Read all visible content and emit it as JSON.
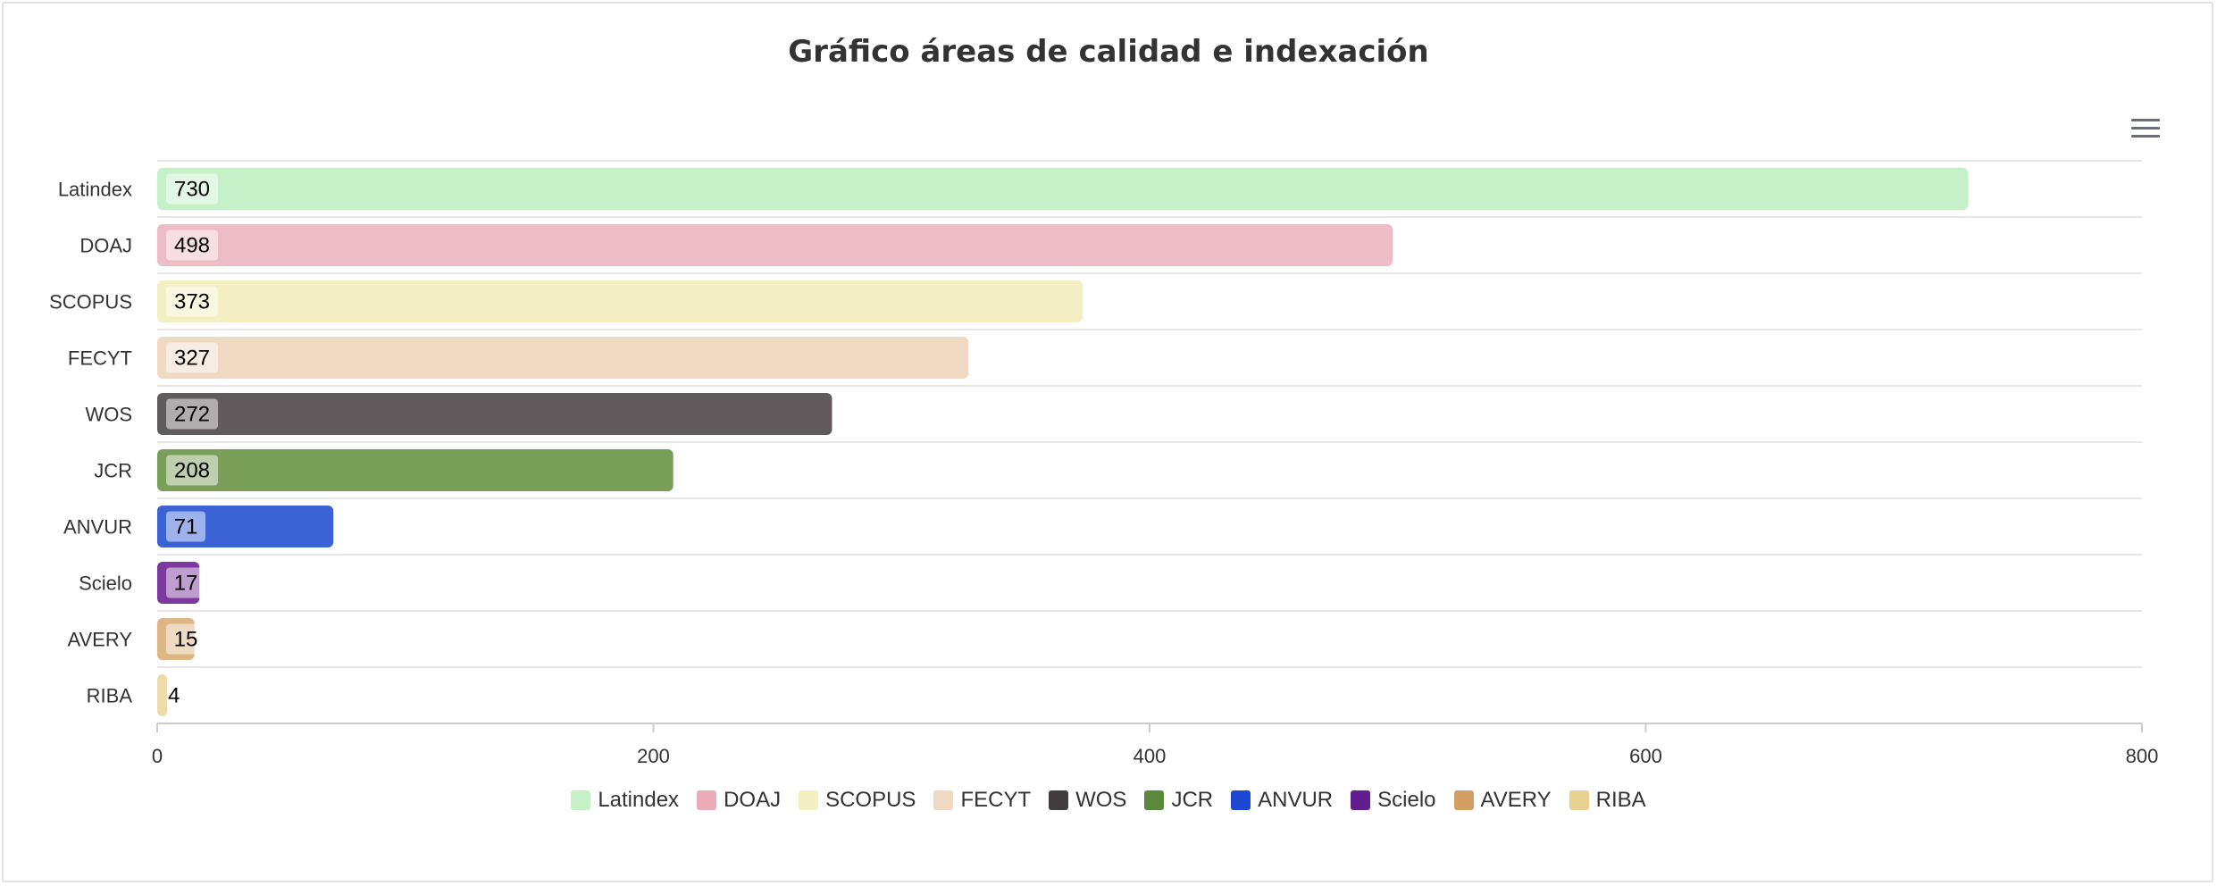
{
  "chart_data": {
    "type": "bar",
    "orientation": "horizontal",
    "title": "Gráfico áreas de calidad e indexación",
    "categories": [
      "Latindex",
      "DOAJ",
      "SCOPUS",
      "FECYT",
      "WOS",
      "JCR",
      "ANVUR",
      "Scielo",
      "AVERY",
      "RIBA"
    ],
    "values": [
      730,
      498,
      373,
      327,
      272,
      208,
      71,
      17,
      15,
      4
    ],
    "bar_colors": [
      "#c6f0c8",
      "#edbcc6",
      "#f4efc3",
      "#efd9c2",
      "#625b5e",
      "#7a9f58",
      "#3b63d6",
      "#7c3a9e",
      "#dcb685",
      "#ecdcab"
    ],
    "legend_colors": [
      "#c6f0c8",
      "#eaadb8",
      "#f4efc3",
      "#efd9c2",
      "#413c3e",
      "#5b8a3d",
      "#1d47d1",
      "#621e8e",
      "#d39f62",
      "#e8d292"
    ],
    "x_ticks": [
      0,
      200,
      400,
      600,
      800
    ],
    "xlim": [
      0,
      800
    ],
    "xlabel": "",
    "ylabel": "",
    "grid": true,
    "legend_position": "bottom"
  }
}
